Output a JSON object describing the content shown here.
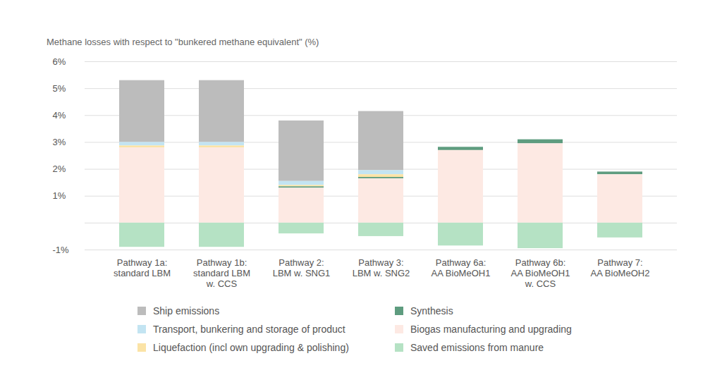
{
  "chart_data": {
    "type": "bar",
    "stacked": true,
    "grid": true,
    "title": "Methane losses with respect to \"bunkered methane equivalent\" (%)",
    "categories": [
      "Pathway 1a:\nstandard LBM",
      "Pathway 1b:\nstandard LBM\nw. CCS",
      "Pathway 2:\nLBM w. SNG1",
      "Pathway 3:\nLBM w. SNG2",
      "Pathway 6a:\nAA BioMeOH1",
      "Pathway 6b:\nAA BioMeOH1\nw. CCS",
      "Pathway 7:\nAA BioMeOH2"
    ],
    "series": [
      {
        "name": "Ship emissions",
        "color": "#bcbcbc",
        "values": [
          2.3,
          2.3,
          2.25,
          2.2,
          0,
          0,
          0
        ]
      },
      {
        "name": "Transport, bunkering and storage of product",
        "color": "#c3e4f2",
        "values": [
          0.13,
          0.13,
          0.15,
          0.15,
          0,
          0,
          0
        ]
      },
      {
        "name": "Liquefaction (incl own upgrading & polishing)",
        "color": "#fbe3a6",
        "values": [
          0.07,
          0.07,
          0.05,
          0.1,
          0,
          0,
          0
        ]
      },
      {
        "name": "Synthesis",
        "color": "#5e9c7f",
        "values": [
          0,
          0,
          0.05,
          0.05,
          0.12,
          0.15,
          0.1
        ]
      },
      {
        "name": "Biogas manufacturing and upgrading",
        "color": "#fde9e3",
        "values": [
          2.8,
          2.8,
          1.3,
          1.65,
          2.7,
          2.95,
          1.8
        ]
      },
      {
        "name": "Saved emissions from manure",
        "color": "#b5e2c4",
        "values": [
          -0.9,
          -0.9,
          -0.4,
          -0.5,
          -0.85,
          -0.95,
          -0.55
        ]
      }
    ],
    "ylim": [
      -1,
      6
    ],
    "yticks": [
      {
        "value": -1,
        "label": "-1%"
      },
      {
        "value": 1,
        "label": "1%"
      },
      {
        "value": 2,
        "label": "2%"
      },
      {
        "value": 3,
        "label": "3%"
      },
      {
        "value": 4,
        "label": "4%"
      },
      {
        "value": 5,
        "label": "5%"
      },
      {
        "value": 6,
        "label": "6%"
      }
    ]
  }
}
